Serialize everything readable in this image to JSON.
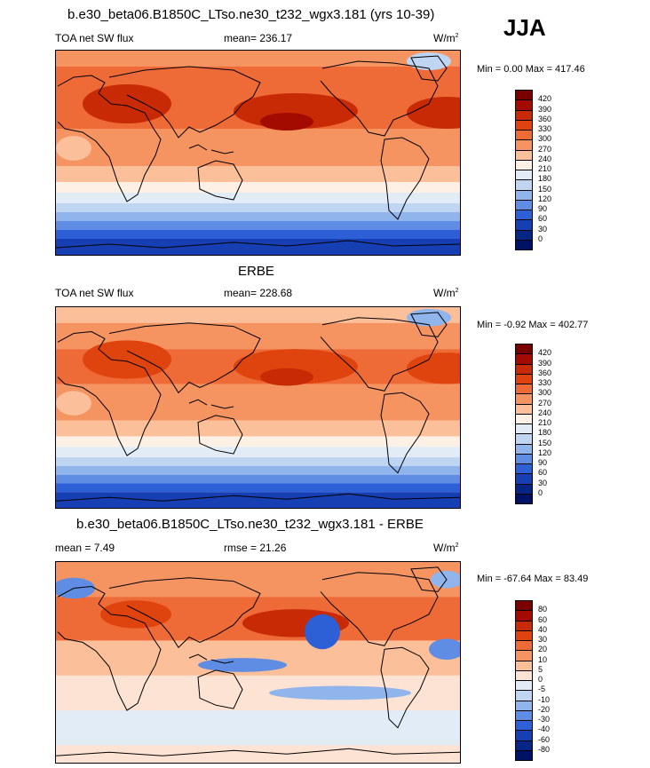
{
  "season": "JJA",
  "panels": [
    {
      "title": "b.e30_beta06.B1850C_LTso.ne30_t232_wgx3.181 (yrs 10-39)",
      "left_label": "TOA net SW flux",
      "center_label": "mean= 236.17",
      "units": "W/m",
      "units_sup": "2",
      "minmax": "Min =   0.00 Max = 417.46",
      "colorbar_levels": [
        "420",
        "390",
        "360",
        "330",
        "300",
        "270",
        "240",
        "210",
        "180",
        "150",
        "120",
        "90",
        "60",
        "30",
        "0"
      ],
      "colorbar_colors": [
        "#7a0000",
        "#a30a00",
        "#c92a06",
        "#e0440e",
        "#ee6a36",
        "#f59461",
        "#fbbf99",
        "#fff0e6",
        "#e2ecf7",
        "#bfd5f2",
        "#90b4ec",
        "#5f8de4",
        "#2d5fd6",
        "#153fb2",
        "#072585",
        "#001266"
      ],
      "kind": "abs"
    },
    {
      "title": "ERBE",
      "left_label": "TOA net SW flux",
      "center_label": "mean= 228.68",
      "units": "W/m",
      "units_sup": "2",
      "minmax": "Min =  -0.92 Max = 402.77",
      "colorbar_levels": [
        "420",
        "390",
        "360",
        "330",
        "300",
        "270",
        "240",
        "210",
        "180",
        "150",
        "120",
        "90",
        "60",
        "30",
        "0"
      ],
      "colorbar_colors": [
        "#7a0000",
        "#a30a00",
        "#c92a06",
        "#e0440e",
        "#ee6a36",
        "#f59461",
        "#fbbf99",
        "#fff0e6",
        "#e2ecf7",
        "#bfd5f2",
        "#90b4ec",
        "#5f8de4",
        "#2d5fd6",
        "#153fb2",
        "#072585",
        "#001266"
      ],
      "kind": "abs"
    },
    {
      "title": "b.e30_beta06.B1850C_LTso.ne30_t232_wgx3.181 - ERBE",
      "left_label": "mean =   7.49",
      "center_label": "rmse =  21.26",
      "units": "W/m",
      "units_sup": "2",
      "minmax": "Min = -67.64 Max =  83.49",
      "colorbar_levels": [
        "80",
        "60",
        "40",
        "30",
        "20",
        "10",
        "5",
        "0",
        "-5",
        "-10",
        "-20",
        "-30",
        "-40",
        "-60",
        "-80"
      ],
      "colorbar_colors": [
        "#7a0000",
        "#a30a00",
        "#c92a06",
        "#e0440e",
        "#ee6a36",
        "#f59461",
        "#fbbf99",
        "#fde3d3",
        "#e2ecf7",
        "#bfd5f2",
        "#90b4ec",
        "#5f8de4",
        "#2d5fd6",
        "#153fb2",
        "#072585",
        "#001266"
      ],
      "kind": "diff"
    }
  ],
  "chart_data": [
    {
      "type": "heatmap",
      "title": "b.e30_beta06.B1850C_LTso.ne30_t232_wgx3.181 (yrs 10-39)",
      "variable": "TOA net SW flux",
      "units": "W/m2",
      "mean": 236.17,
      "min": 0.0,
      "max": 417.46,
      "contour_levels": [
        0,
        30,
        60,
        90,
        120,
        150,
        180,
        210,
        240,
        270,
        300,
        330,
        360,
        390,
        420
      ]
    },
    {
      "type": "heatmap",
      "title": "ERBE",
      "variable": "TOA net SW flux",
      "units": "W/m2",
      "mean": 228.68,
      "min": -0.92,
      "max": 402.77,
      "contour_levels": [
        0,
        30,
        60,
        90,
        120,
        150,
        180,
        210,
        240,
        270,
        300,
        330,
        360,
        390,
        420
      ]
    },
    {
      "type": "heatmap",
      "title": "b.e30_beta06.B1850C_LTso.ne30_t232_wgx3.181 - ERBE",
      "units": "W/m2",
      "mean": 7.49,
      "rmse": 21.26,
      "min": -67.64,
      "max": 83.49,
      "contour_levels": [
        -80,
        -60,
        -40,
        -30,
        -20,
        -10,
        -5,
        0,
        5,
        10,
        20,
        30,
        40,
        60,
        80
      ]
    }
  ]
}
